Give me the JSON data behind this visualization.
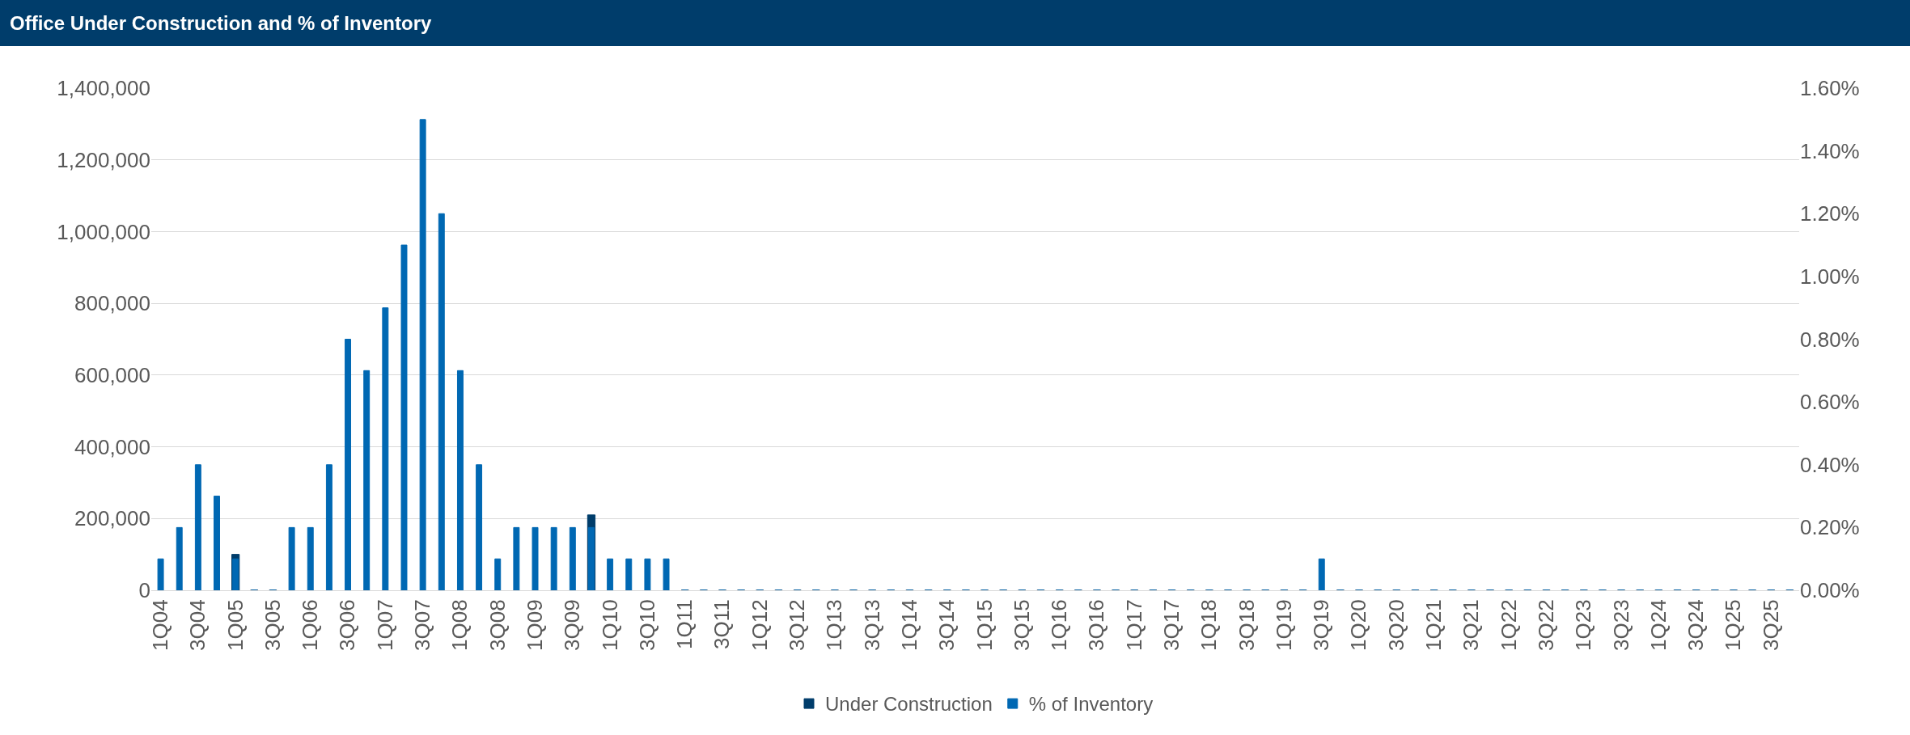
{
  "chart_data": {
    "type": "bar",
    "title": "Office Under Construction and % of Inventory",
    "categories": [
      "1Q04",
      null,
      "3Q04",
      null,
      "1Q05",
      null,
      "3Q05",
      null,
      "1Q06",
      null,
      "3Q06",
      null,
      "1Q07",
      null,
      "3Q07",
      null,
      "1Q08",
      null,
      "3Q08",
      null,
      "1Q09",
      null,
      "3Q09",
      null,
      "1Q10",
      null,
      "3Q10",
      null,
      "1Q11",
      null,
      "3Q11",
      null,
      "1Q12",
      null,
      "3Q12",
      null,
      "1Q13",
      null,
      "3Q13",
      null,
      "1Q14",
      null,
      "3Q14",
      null,
      "1Q15",
      null,
      "3Q15",
      null,
      "1Q16",
      null,
      "3Q16",
      null,
      "1Q17",
      null,
      "3Q17",
      null,
      "1Q18",
      null,
      "3Q18",
      null,
      "1Q19",
      null,
      "3Q19",
      null,
      "1Q20",
      null,
      "3Q20",
      null,
      "1Q21",
      null,
      "3Q21",
      null,
      "1Q22",
      null,
      "3Q22",
      null,
      "1Q23",
      null,
      "3Q23",
      null,
      "1Q24",
      null,
      "3Q24",
      null,
      "1Q25",
      null,
      "3Q25",
      null
    ],
    "series": [
      {
        "name": "Under Construction",
        "color": "#003d6b",
        "values": [
          null,
          null,
          null,
          null,
          100000,
          0,
          0,
          null,
          null,
          null,
          null,
          null,
          null,
          null,
          null,
          null,
          null,
          null,
          null,
          null,
          null,
          null,
          null,
          210000,
          null,
          null,
          null,
          null,
          0,
          0,
          0,
          0,
          0,
          0,
          0,
          0,
          0,
          0,
          0,
          0,
          0,
          0,
          0,
          0,
          0,
          0,
          0,
          0,
          0,
          0,
          0,
          0,
          0,
          0,
          0,
          0,
          0,
          0,
          0,
          0,
          0,
          0,
          null,
          0,
          0,
          0,
          0,
          0,
          0,
          0,
          0,
          0,
          0,
          0,
          0,
          0,
          0,
          0,
          0,
          0,
          0,
          0,
          0,
          0,
          0,
          0,
          0,
          0
        ]
      },
      {
        "name": "% of Inventory",
        "color": "#0068b3",
        "axis": "y2",
        "values": [
          0.1,
          0.2,
          0.4,
          0.3,
          0.1,
          0,
          0,
          0.2,
          0.2,
          0.4,
          0.8,
          0.7,
          0.9,
          1.1,
          1.5,
          1.2,
          0.7,
          0.4,
          0.1,
          0.2,
          0.2,
          0.2,
          0.2,
          0.2,
          0.1,
          0.1,
          0.1,
          0.1,
          0,
          0,
          0,
          0,
          0,
          0,
          0,
          0,
          0,
          0,
          0,
          0,
          0,
          0,
          0,
          0,
          0,
          0,
          0,
          0,
          0,
          0,
          0,
          0,
          0,
          0,
          0,
          0,
          0,
          0,
          0,
          0,
          0,
          0,
          0.1,
          0,
          0,
          0,
          0,
          0,
          0,
          0,
          0,
          0,
          0,
          0,
          0,
          0,
          0,
          0,
          0,
          0,
          0,
          0,
          0,
          0,
          0,
          0,
          0,
          0
        ]
      }
    ],
    "ylim": [
      0,
      1400000
    ],
    "yticks": [
      {
        "value": 0,
        "label": "0"
      },
      {
        "value": 200000,
        "label": "200,000"
      },
      {
        "value": 400000,
        "label": "400,000"
      },
      {
        "value": 600000,
        "label": "600,000"
      },
      {
        "value": 800000,
        "label": "800,000"
      },
      {
        "value": 1000000,
        "label": "1,000,000"
      },
      {
        "value": 1200000,
        "label": "1,200,000"
      },
      {
        "value": 1400000,
        "label": "1,400,000"
      }
    ],
    "y2lim": [
      0,
      1.6
    ],
    "y2ticks": [
      {
        "value": 0,
        "label": "0.00%"
      },
      {
        "value": 0.2,
        "label": "0.20%"
      },
      {
        "value": 0.4,
        "label": "0.40%"
      },
      {
        "value": 0.6,
        "label": "0.60%"
      },
      {
        "value": 0.8,
        "label": "0.80%"
      },
      {
        "value": 1.0,
        "label": "1.00%"
      },
      {
        "value": 1.2,
        "label": "1.20%"
      },
      {
        "value": 1.4,
        "label": "1.40%"
      },
      {
        "value": 1.6,
        "label": "1.60%"
      }
    ],
    "grid": "y",
    "legend": "bottom"
  }
}
